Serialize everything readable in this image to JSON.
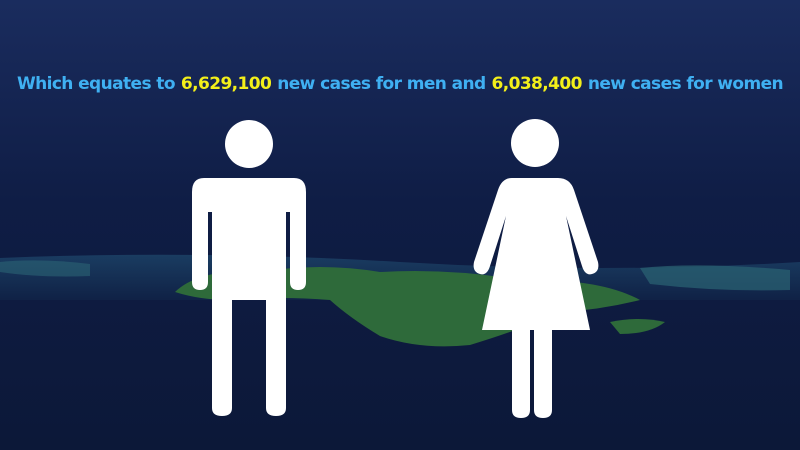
{
  "headline": {
    "lead": "Which equates to",
    "men_count": "6,629,100",
    "men_text": "new cases for men and",
    "women_count": "6,038,400",
    "women_text": "new cases for women"
  }
}
